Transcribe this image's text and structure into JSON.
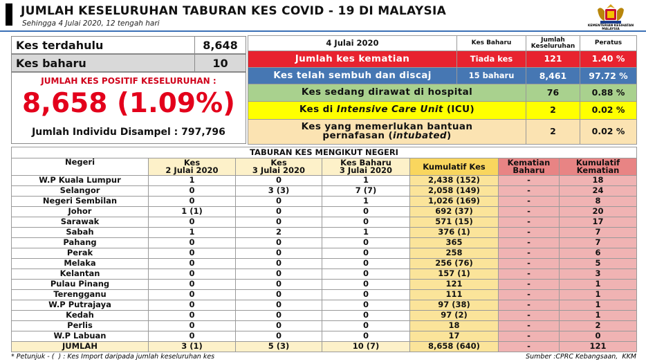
{
  "header": {
    "title": "JUMLAH KESELURUHAN TABURAN KES COVID - 19 DI MALAYSIA",
    "subtitle": "Sehingga 4 Julai 2020, 12 tengah hari",
    "logo_text": "KEMENTERIAN KESIHATAN MALAYSIA"
  },
  "summary": {
    "previous": {
      "label": "Kes terdahulu",
      "value": "8,648"
    },
    "new": {
      "label": "Kes baharu",
      "value": "10"
    },
    "total_label": "JUMLAH KES POSITIF KESELURUHAN :",
    "total_value": "8,658 (1.09%)",
    "tested": "Jumlah Individu Disampel : 797,796"
  },
  "status_table": {
    "header": [
      "4 Julai 2020",
      "Kes Baharu",
      "Jumlah\nKeseluruhan",
      "Peratus"
    ],
    "rows": [
      {
        "label": "Jumlah kes kematian",
        "new": "Tiada kes",
        "total": "121",
        "percent": "1.40 %"
      },
      {
        "label": "Kes telah sembuh dan discaj",
        "new": "15 baharu",
        "total": "8,461",
        "percent": "97.72 %"
      },
      {
        "label": "Kes sedang dirawat di hospital",
        "total": "76",
        "percent": "0.88 %"
      },
      {
        "label_parts": [
          "Kes di ",
          "Intensive Care Unit",
          " (ICU)"
        ],
        "total": "2",
        "percent": "0.02 %"
      },
      {
        "label_parts": [
          "Kes yang memerlukan bantuan\npernafasan (",
          "intubated",
          ")"
        ],
        "total": "2",
        "percent": "0.02 %"
      }
    ]
  },
  "state_table": {
    "title": "TABURAN KES MENGIKUT NEGERI",
    "header": [
      "Negeri",
      "Kes\n2 Julai 2020",
      "Kes\n3 Julai 2020",
      "Kes Baharu\n3 Julai 2020",
      "Kumulatif Kes",
      "Kematian\nBaharu",
      "Kumulatif\nKematian"
    ],
    "rows": [
      [
        "W.P Kuala Lumpur",
        "1",
        "0",
        "1",
        "2,438 (152)",
        "-",
        "18"
      ],
      [
        "Selangor",
        "0",
        "3 (3)",
        "7 (7)",
        "2,058 (149)",
        "-",
        "24"
      ],
      [
        "Negeri Sembilan",
        "0",
        "0",
        "1",
        "1,026 (169)",
        "-",
        "8"
      ],
      [
        "Johor",
        "1 (1)",
        "0",
        "0",
        "692 (37)",
        "-",
        "20"
      ],
      [
        "Sarawak",
        "0",
        "0",
        "0",
        "571 (15)",
        "-",
        "17"
      ],
      [
        "Sabah",
        "1",
        "2",
        "1",
        "376 (1)",
        "-",
        "7"
      ],
      [
        "Pahang",
        "0",
        "0",
        "0",
        "365",
        "-",
        "7"
      ],
      [
        "Perak",
        "0",
        "0",
        "0",
        "258",
        "-",
        "6"
      ],
      [
        "Melaka",
        "0",
        "0",
        "0",
        "256 (76)",
        "-",
        "5"
      ],
      [
        "Kelantan",
        "0",
        "0",
        "0",
        "157 (1)",
        "-",
        "3"
      ],
      [
        "Pulau Pinang",
        "0",
        "0",
        "0",
        "121",
        "-",
        "1"
      ],
      [
        "Terengganu",
        "0",
        "0",
        "0",
        "111",
        "-",
        "1"
      ],
      [
        "W.P Putrajaya",
        "0",
        "0",
        "0",
        "97 (38)",
        "-",
        "1"
      ],
      [
        "Kedah",
        "0",
        "0",
        "0",
        "97 (2)",
        "-",
        "1"
      ],
      [
        "Perlis",
        "0",
        "0",
        "0",
        "18",
        "-",
        "2"
      ],
      [
        "W.P Labuan",
        "0",
        "0",
        "0",
        "17",
        "-",
        "0"
      ],
      [
        "JUMLAH",
        "3 (1)",
        "5 (3)",
        "10 (7)",
        "8,658 (640)",
        "-",
        "121"
      ]
    ]
  },
  "footer": {
    "note": "* Petunjuk - (  ) : Kes Import daripada jumlah keseluruhan kes",
    "source": "Sumber :CPRC Kebangsaan,  KKM"
  }
}
